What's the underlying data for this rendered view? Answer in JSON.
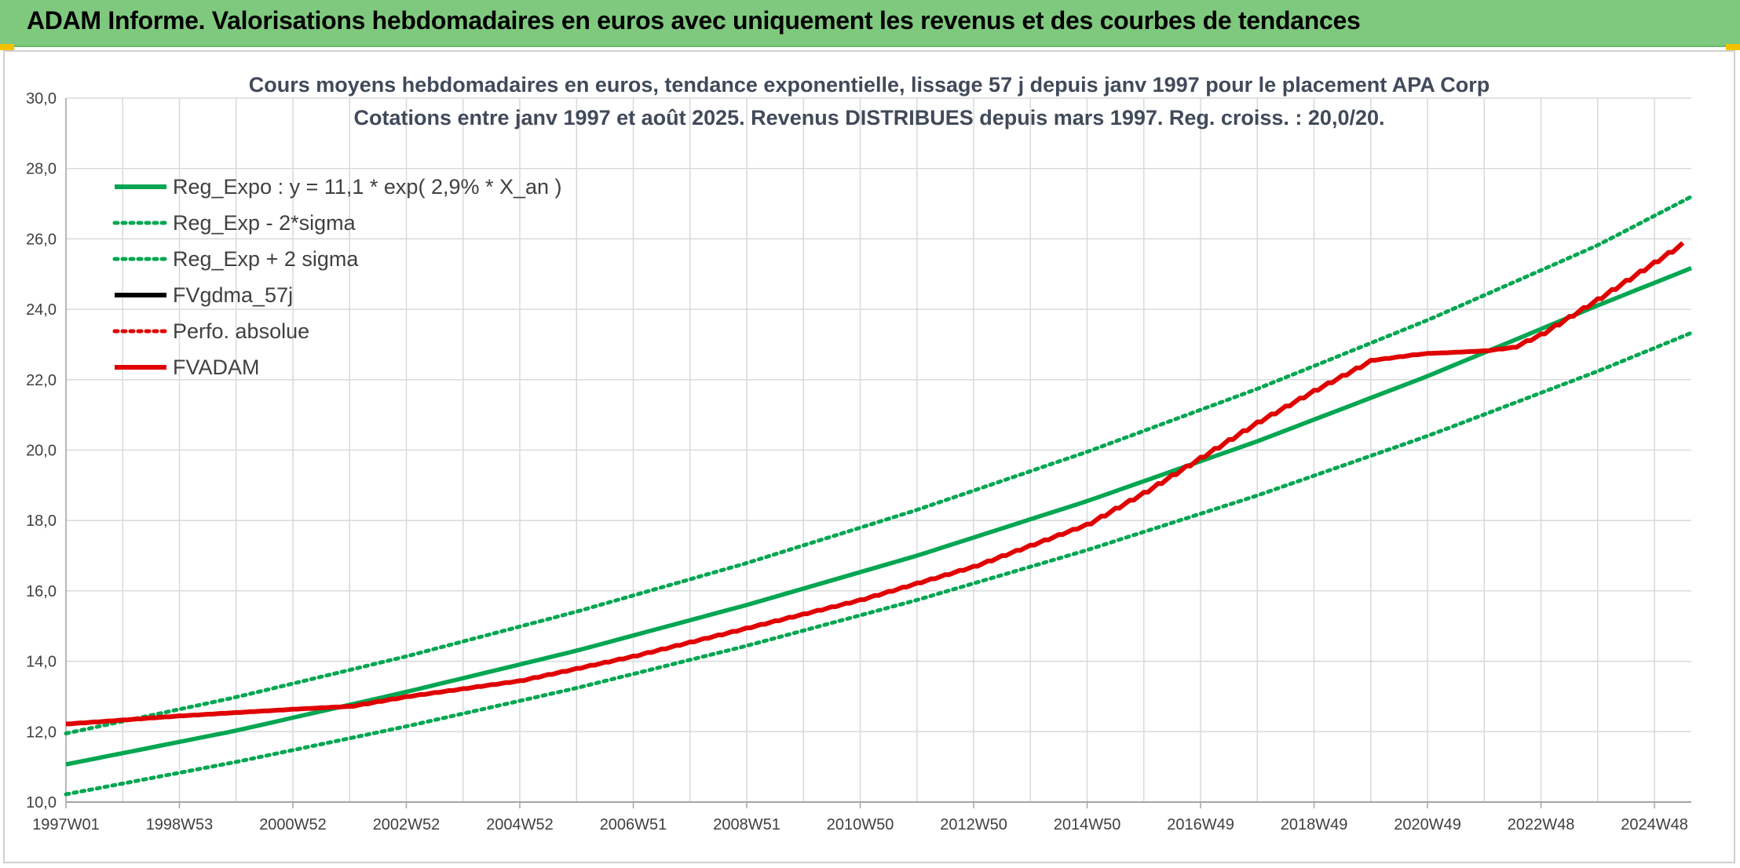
{
  "header": {
    "title": "ADAM Informe. Valorisations hebdomadaires en euros avec uniquement les revenus et des courbes de tendances",
    "background": "#7fc97f"
  },
  "chart_data": {
    "type": "line",
    "title": "Cours moyens hebdomadaires en euros, tendance exponentielle, lissage 57 j depuis janv 1997 pour le placement APA Corp",
    "subtitle": "Cotations entre janv 1997 et août 2025. Revenus DISTRIBUES depuis mars 1997. Reg. croiss. : 20,0/20.",
    "xlabel": "",
    "ylabel": "",
    "ylim": [
      10,
      30
    ],
    "xlim": [
      1997.0,
      2025.65
    ],
    "y_ticks": [
      "10,0",
      "12,0",
      "14,0",
      "16,0",
      "18,0",
      "20,0",
      "22,0",
      "24,0",
      "26,0",
      "28,0",
      "30,0"
    ],
    "x_ticks": [
      {
        "label": "1997W01",
        "x": 1997.0
      },
      {
        "label": "1998W53",
        "x": 1999.0
      },
      {
        "label": "2000W52",
        "x": 2001.0
      },
      {
        "label": "2002W52",
        "x": 2003.0
      },
      {
        "label": "2004W52",
        "x": 2005.0
      },
      {
        "label": "2006W51",
        "x": 2007.0
      },
      {
        "label": "2008W51",
        "x": 2009.0
      },
      {
        "label": "2010W50",
        "x": 2011.0
      },
      {
        "label": "2012W50",
        "x": 2013.0
      },
      {
        "label": "2014W50",
        "x": 2015.0
      },
      {
        "label": "2016W49",
        "x": 2017.0
      },
      {
        "label": "2018W49",
        "x": 2019.0
      },
      {
        "label": "2020W49",
        "x": 2021.0
      },
      {
        "label": "2022W48",
        "x": 2023.0
      },
      {
        "label": "2024W48",
        "x": 2025.0
      }
    ],
    "grid": true,
    "legend_position": "top-left",
    "series": [
      {
        "name": "Reg_Expo : y = 11,1 * exp( 2,9% *  X_an )",
        "color": "#00a651",
        "style": "solid",
        "x": [
          1997,
          2000,
          2003,
          2006,
          2009,
          2012,
          2015,
          2018,
          2021,
          2024,
          2025.65
        ],
        "values": [
          11.07,
          12.03,
          13.13,
          14.3,
          15.6,
          17.0,
          18.55,
          20.25,
          22.1,
          24.11,
          25.17
        ]
      },
      {
        "name": "Reg_Exp - 2*sigma",
        "color": "#00a651",
        "style": "dotted",
        "x": [
          1997,
          2000,
          2003,
          2006,
          2009,
          2012,
          2015,
          2018,
          2021,
          2024,
          2025.65
        ],
        "values": [
          10.22,
          11.14,
          12.15,
          13.24,
          14.44,
          15.74,
          17.16,
          18.71,
          20.4,
          22.24,
          23.33
        ]
      },
      {
        "name": "Reg_Exp + 2 sigma",
        "color": "#00a651",
        "style": "dotted",
        "x": [
          1997,
          2000,
          2003,
          2006,
          2009,
          2012,
          2015,
          2018,
          2021,
          2024,
          2025.65
        ],
        "values": [
          11.95,
          12.98,
          14.14,
          15.41,
          16.79,
          18.3,
          19.95,
          21.74,
          23.69,
          25.82,
          27.2
        ]
      },
      {
        "name": "FVgdma_57j",
        "color": "#000000",
        "style": "solid",
        "x": [],
        "values": []
      },
      {
        "name": "Perfo. absolue",
        "color": "#e00000",
        "style": "dotted",
        "x": [],
        "values": []
      },
      {
        "name": "FVADAM",
        "color": "#e00000",
        "style": "solid-stepped",
        "x": [
          1997.0,
          1999.0,
          2001.0,
          2002.0,
          2003.0,
          2005.0,
          2007.0,
          2009.0,
          2011.0,
          2013.0,
          2015.0,
          2016.0,
          2017.0,
          2018.0,
          2019.0,
          2020.0,
          2020.9,
          2021.5,
          2022.0,
          2022.5,
          2023.0,
          2024.0,
          2025.0,
          2025.65
        ],
        "values": [
          12.22,
          12.45,
          12.64,
          12.72,
          13.0,
          13.45,
          14.15,
          14.95,
          15.75,
          16.7,
          17.9,
          18.8,
          19.8,
          20.8,
          21.7,
          22.55,
          22.74,
          22.78,
          22.82,
          22.92,
          23.3,
          24.3,
          25.35,
          26.05
        ]
      }
    ]
  }
}
